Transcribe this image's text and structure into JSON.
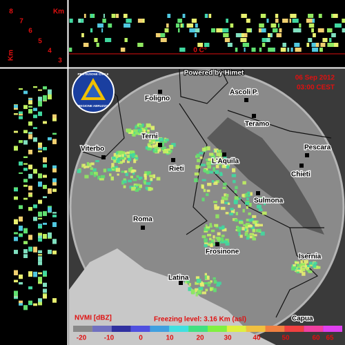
{
  "altitude_panel": {
    "unit": "Km",
    "levels": [
      "8",
      "7",
      "6",
      "5",
      "4",
      "3"
    ],
    "side_unit": "Km"
  },
  "section": {
    "freezing_mark": "0 C°"
  },
  "header": {
    "credit": "Powered by Himet",
    "date": "06 Sep 2012",
    "time": "03:00 CEST",
    "logo_top": "PROTEZIONE CIVILE",
    "logo_bottom": "REGIONE ABRUZZO"
  },
  "cities": [
    {
      "label": "Foligno"
    },
    {
      "label": "Ascoli P."
    },
    {
      "label": "Teramo"
    },
    {
      "label": "Terni"
    },
    {
      "label": "Pescara"
    },
    {
      "label": "Viterbo"
    },
    {
      "label": "L'Aquila"
    },
    {
      "label": "Rieti"
    },
    {
      "label": "Chieti"
    },
    {
      "label": "Sulmona"
    },
    {
      "label": "Roma"
    },
    {
      "label": "Frosinone"
    },
    {
      "label": "Isernia"
    },
    {
      "label": "Latina"
    },
    {
      "label": "Capua"
    }
  ],
  "legend": {
    "title": "NVMI [dBZ]",
    "freezing_level": "Freezing level: 3.16 Km (asl)",
    "ticks": [
      "-20",
      "-10",
      "0",
      "10",
      "20",
      "30",
      "40",
      "50",
      "60",
      "65"
    ]
  }
}
